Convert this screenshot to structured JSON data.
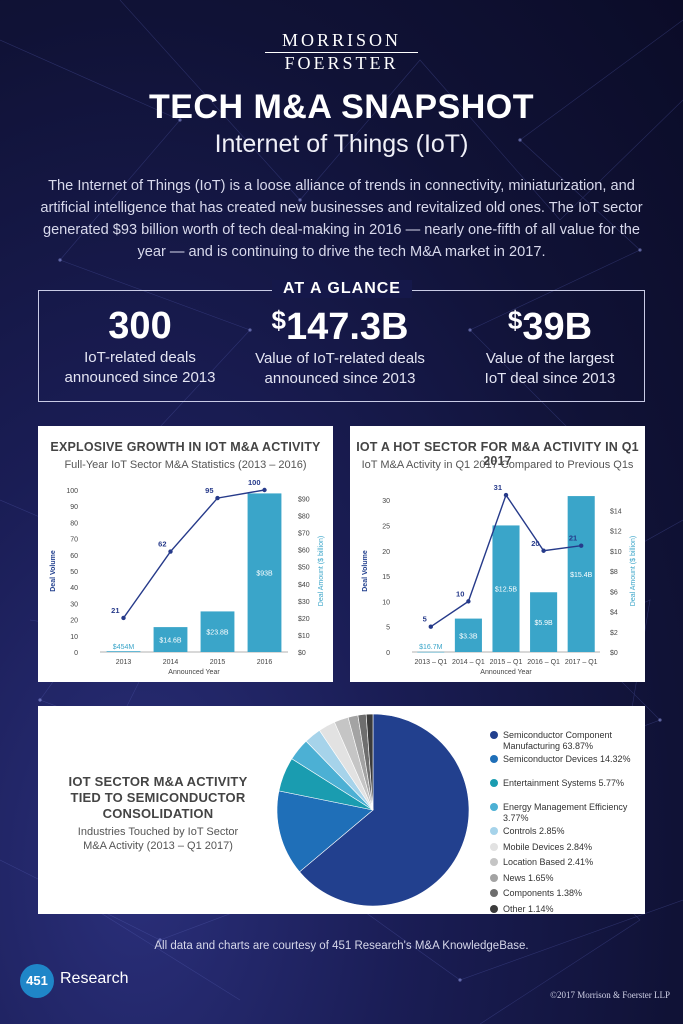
{
  "brand": {
    "line1": "MORRISON",
    "line2": "FOERSTER"
  },
  "header": {
    "title": "TECH M&A SNAPSHOT",
    "subtitle": "Internet of Things (IoT)",
    "intro": "The Internet of Things (IoT) is a loose alliance of trends in connectivity, miniaturization, and artificial intelligence that has created new businesses and revitalized old ones. The IoT sector generated $93 billion worth of tech deal-making in 2016 — nearly one-fifth of all value for the year — and is continuing to drive the tech M&A market in 2017."
  },
  "glance": {
    "title": "AT A GLANCE",
    "stats": [
      {
        "value": "300",
        "label1": "IoT-related deals",
        "label2": "announced since 2013"
      },
      {
        "currency": "$",
        "value": "147.3B",
        "label1": "Value of IoT-related deals",
        "label2": "announced since 2013"
      },
      {
        "currency": "$",
        "value": "39B",
        "label1": "Value of the largest",
        "label2": "IoT deal since 2013"
      }
    ]
  },
  "chart1": {
    "title": "EXPLOSIVE GROWTH IN IOT M&A ACTIVITY",
    "subtitle": "Full-Year IoT Sector M&A Statistics (2013 – 2016)"
  },
  "chart2": {
    "title": "IOT A HOT SECTOR FOR M&A ACTIVITY IN Q1 2017",
    "subtitle": "IoT M&A Activity in Q1 2017 Compared to Previous Q1s"
  },
  "chart3": {
    "title1": "IOT SECTOR M&A ACTIVITY",
    "title2": "TIED TO SEMICONDUCTOR",
    "title3": "CONSOLIDATION",
    "sub1": "Industries Touched by IoT Sector",
    "sub2": "M&A Activity (2013 – Q1 2017)"
  },
  "chart_data": [
    {
      "type": "bar",
      "title": "EXPLOSIVE GROWTH IN IOT M&A ACTIVITY",
      "subtitle": "Full-Year IoT Sector M&A Statistics (2013 – 2016)",
      "xlabel": "Announced Year",
      "ylabel": "Deal Volume",
      "y2label": "Deal Amount ($ billion)",
      "categories": [
        "2013",
        "2014",
        "2015",
        "2016"
      ],
      "ylim": [
        0,
        100
      ],
      "y2lim": [
        0,
        95
      ],
      "yticks": [
        0,
        10,
        20,
        30,
        40,
        50,
        60,
        70,
        80,
        90,
        100
      ],
      "y2ticks": [
        "$0",
        "$10",
        "$20",
        "$30",
        "$40",
        "$50",
        "$60",
        "$70",
        "$80",
        "$90"
      ],
      "bar_series": {
        "name": "Deal Amount ($ billion)",
        "values": [
          0.454,
          14.6,
          23.8,
          93
        ],
        "labels": [
          "$454M",
          "$14.6B",
          "$23.8B",
          "$93B"
        ]
      },
      "line_series": {
        "name": "Deal Volume",
        "values": [
          21,
          62,
          95,
          100
        ]
      },
      "colors": {
        "bar": "#3aa5c9",
        "line": "#263a8a"
      }
    },
    {
      "type": "bar",
      "title": "IOT A HOT SECTOR FOR M&A ACTIVITY IN Q1 2017",
      "subtitle": "IoT M&A Activity in Q1 2017 Compared to Previous Q1s",
      "xlabel": "Announced Year",
      "ylabel": "Deal Volume",
      "y2label": "Deal Amount ($ billion)",
      "categories": [
        "2013 – Q1",
        "2014 – Q1",
        "2015 – Q1",
        "2016 – Q1",
        "2017 – Q1"
      ],
      "ylim": [
        0,
        32
      ],
      "y2lim": [
        0,
        16
      ],
      "yticks": [
        0,
        5,
        10,
        15,
        20,
        25,
        30
      ],
      "y2ticks": [
        "$0",
        "$2",
        "$4",
        "$6",
        "$8",
        "$10",
        "$12",
        "$14"
      ],
      "bar_series": {
        "name": "Deal Amount ($ billion)",
        "values": [
          0.0167,
          3.3,
          12.5,
          5.9,
          15.4
        ],
        "labels": [
          "$16.7M",
          "$3.3B",
          "$12.5B",
          "$5.9B",
          "$15.4B"
        ]
      },
      "line_series": {
        "name": "Deal Volume",
        "values": [
          5,
          10,
          31,
          20,
          21
        ]
      },
      "colors": {
        "bar": "#3aa5c9",
        "line": "#263a8a"
      }
    },
    {
      "type": "pie",
      "title": "IOT SECTOR M&A ACTIVITY TIED TO SEMICONDUCTOR CONSOLIDATION",
      "subtitle": "Industries Touched by IoT Sector M&A Activity (2013 – Q1 2017)",
      "legend_position": "right",
      "slices": [
        {
          "label": "Semiconductor Component Manufacturing",
          "value": 63.87,
          "text": "Semiconductor Component Manufacturing 63.87%",
          "color": "#22408e"
        },
        {
          "label": "Semiconductor Devices",
          "value": 14.32,
          "text": "Semiconductor Devices 14.32%",
          "color": "#1f6fb8"
        },
        {
          "label": "Entertainment Systems",
          "value": 5.77,
          "text": "Entertainment Systems 5.77%",
          "color": "#1a9cb0"
        },
        {
          "label": "Energy Management Efficiency",
          "value": 3.77,
          "text": "Energy Management Efficiency 3.77%",
          "color": "#4cb0d4"
        },
        {
          "label": "Controls",
          "value": 2.85,
          "text": "Controls 2.85%",
          "color": "#a6d3ea"
        },
        {
          "label": "Mobile Devices",
          "value": 2.84,
          "text": "Mobile Devices 2.84%",
          "color": "#e2e2e2"
        },
        {
          "label": "Location Based",
          "value": 2.41,
          "text": "Location Based 2.41%",
          "color": "#c5c5c5"
        },
        {
          "label": "News",
          "value": 1.65,
          "text": "News 1.65%",
          "color": "#a3a3a3"
        },
        {
          "label": "Components",
          "value": 1.38,
          "text": "Components 1.38%",
          "color": "#6e6e6e"
        },
        {
          "label": "Other",
          "value": 1.14,
          "text": "Other 1.14%",
          "color": "#3b3b3b"
        }
      ]
    }
  ],
  "footer": {
    "note": "All data and charts are courtesy of 451 Research's M&A KnowledgeBase.",
    "logo_number": "451",
    "logo_text": "Research",
    "copyright": "©2017 Morrison & Foerster LLP"
  }
}
